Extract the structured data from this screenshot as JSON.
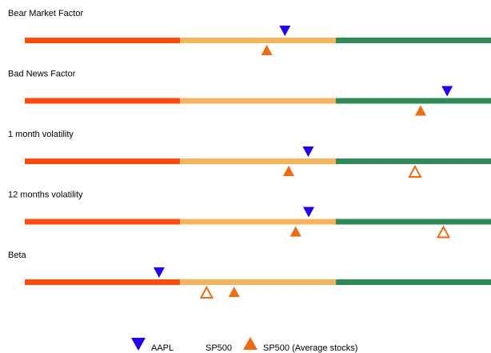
{
  "chart_data": {
    "type": "scatter",
    "title": "",
    "scale": {
      "min": 0,
      "max": 100
    },
    "zones": [
      {
        "from": 0,
        "to": 33.3,
        "color": "#ff4a0a"
      },
      {
        "from": 33.3,
        "to": 66.7,
        "color": "#f6b45c"
      },
      {
        "from": 66.7,
        "to": 100,
        "color": "#2e8b57"
      }
    ],
    "factors": [
      {
        "label": "Bear Market Factor",
        "aapl": 55.8,
        "sp500_avg": 51.9,
        "sp500": null
      },
      {
        "label": "Bad News Factor",
        "aapl": 90.6,
        "sp500_avg": 84.9,
        "sp500": null
      },
      {
        "label": "1 month volatility",
        "aapl": 60.8,
        "sp500_avg": 56.6,
        "sp500": 83.7
      },
      {
        "label": "12 months volatility",
        "aapl": 60.9,
        "sp500_avg": 58.1,
        "sp500": 89.8
      },
      {
        "label": "Beta",
        "aapl": 28.8,
        "sp500_avg": 44.9,
        "sp500": 39.0
      }
    ],
    "legend": {
      "placement": "bottom",
      "entries": [
        {
          "key": "aapl",
          "label": "AAPL",
          "marker": "triangle-down",
          "color": "#2200ee",
          "filled": true
        },
        {
          "key": "sp500",
          "label": "SP500",
          "marker": "triangle-up",
          "color": "#f06a12",
          "filled": false
        },
        {
          "key": "sp500_avg",
          "label": "SP500 (Average stocks)",
          "marker": "triangle-up",
          "color": "#f06a12",
          "filled": true
        }
      ]
    }
  }
}
